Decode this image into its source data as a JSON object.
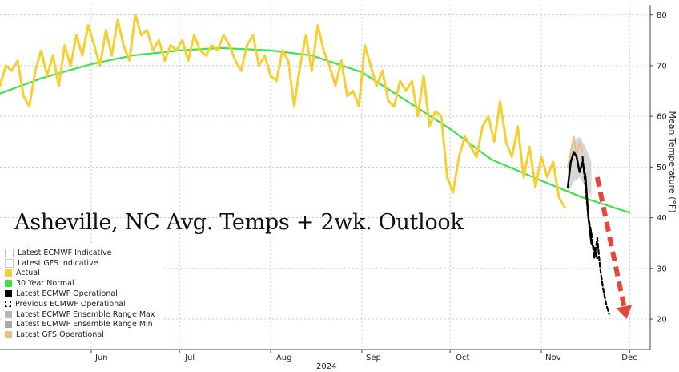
{
  "chart_data": {
    "type": "line",
    "title": "Asheville, NC Avg. Temps + 2wk. Outlook",
    "xlabel": "2024",
    "ylabel": "Mean Temperature (°F)",
    "xlim": [
      "2024-05-01",
      "2024-12-08"
    ],
    "ylim": [
      14,
      82
    ],
    "y_ticks": [
      20,
      30,
      40,
      50,
      60,
      70,
      80
    ],
    "x_ticks": [
      {
        "label": "Jun",
        "date": "2024-06-01"
      },
      {
        "label": "Jul",
        "date": "2024-07-01"
      },
      {
        "label": "Aug",
        "date": "2024-08-01"
      },
      {
        "label": "Sep",
        "date": "2024-09-01"
      },
      {
        "label": "Oct",
        "date": "2024-10-01"
      },
      {
        "label": "Nov",
        "date": "2024-11-01"
      },
      {
        "label": "Dec",
        "date": "2024-12-01"
      }
    ],
    "grid": true,
    "legend_position": "bottom-left",
    "series": [
      {
        "name": "30 Year Normal",
        "color": "#3ee34a",
        "style": "solid",
        "x": [
          "2024-05-01",
          "2024-05-15",
          "2024-06-01",
          "2024-06-15",
          "2024-07-01",
          "2024-07-15",
          "2024-08-01",
          "2024-08-15",
          "2024-09-01",
          "2024-09-15",
          "2024-10-01",
          "2024-10-15",
          "2024-11-01",
          "2024-11-15",
          "2024-12-01"
        ],
        "y": [
          64.5,
          67.5,
          70.3,
          72.0,
          73.0,
          73.5,
          73.0,
          72.0,
          68.7,
          63.5,
          57.5,
          51.5,
          47.3,
          44.0,
          41.0
        ]
      },
      {
        "name": "Actual",
        "color": "#f5d033",
        "style": "solid",
        "x": [
          "2024-05-01",
          "2024-05-03",
          "2024-05-05",
          "2024-05-07",
          "2024-05-09",
          "2024-05-11",
          "2024-05-13",
          "2024-05-15",
          "2024-05-17",
          "2024-05-19",
          "2024-05-21",
          "2024-05-23",
          "2024-05-25",
          "2024-05-27",
          "2024-05-29",
          "2024-05-31",
          "2024-06-02",
          "2024-06-04",
          "2024-06-06",
          "2024-06-08",
          "2024-06-10",
          "2024-06-12",
          "2024-06-14",
          "2024-06-16",
          "2024-06-18",
          "2024-06-20",
          "2024-06-22",
          "2024-06-24",
          "2024-06-26",
          "2024-06-28",
          "2024-06-30",
          "2024-07-02",
          "2024-07-04",
          "2024-07-06",
          "2024-07-08",
          "2024-07-10",
          "2024-07-12",
          "2024-07-14",
          "2024-07-16",
          "2024-07-18",
          "2024-07-20",
          "2024-07-22",
          "2024-07-24",
          "2024-07-26",
          "2024-07-28",
          "2024-07-30",
          "2024-08-01",
          "2024-08-03",
          "2024-08-05",
          "2024-08-07",
          "2024-08-09",
          "2024-08-11",
          "2024-08-13",
          "2024-08-15",
          "2024-08-17",
          "2024-08-19",
          "2024-08-21",
          "2024-08-23",
          "2024-08-25",
          "2024-08-27",
          "2024-08-29",
          "2024-08-31",
          "2024-09-02",
          "2024-09-04",
          "2024-09-06",
          "2024-09-08",
          "2024-09-10",
          "2024-09-12",
          "2024-09-14",
          "2024-09-16",
          "2024-09-18",
          "2024-09-20",
          "2024-09-22",
          "2024-09-24",
          "2024-09-26",
          "2024-09-28",
          "2024-09-30",
          "2024-10-02",
          "2024-10-04",
          "2024-10-06",
          "2024-10-08",
          "2024-10-10",
          "2024-10-12",
          "2024-10-14",
          "2024-10-16",
          "2024-10-18",
          "2024-10-20",
          "2024-10-22",
          "2024-10-24",
          "2024-10-26",
          "2024-10-28",
          "2024-10-30",
          "2024-11-01",
          "2024-11-03",
          "2024-11-05",
          "2024-11-07",
          "2024-11-09"
        ],
        "y": [
          66,
          70,
          69,
          71,
          64,
          62,
          69,
          73,
          68,
          72,
          66,
          74,
          70,
          76,
          72,
          78,
          74,
          70,
          77,
          72,
          79,
          74,
          71,
          80,
          76,
          77,
          73,
          75,
          71,
          74,
          73,
          75,
          71,
          76,
          73,
          72,
          74,
          73,
          76,
          74,
          71,
          69,
          74,
          76,
          70,
          72,
          68,
          67,
          73,
          71,
          62,
          70,
          76,
          69,
          78,
          73,
          70,
          66,
          71,
          64,
          65,
          62,
          74,
          70,
          66,
          69,
          63,
          62,
          67,
          65,
          67,
          60,
          68,
          58,
          61,
          60,
          48,
          45,
          52,
          56,
          54,
          52,
          58,
          60,
          55,
          63,
          55,
          52,
          58,
          48,
          54,
          46,
          52,
          48,
          51,
          44,
          42
        ]
      },
      {
        "name": "Latest ECMWF Operational",
        "color": "#000000",
        "style": "solid",
        "x": [
          "2024-11-10",
          "2024-11-11",
          "2024-11-12",
          "2024-11-13",
          "2024-11-14",
          "2024-11-15",
          "2024-11-16",
          "2024-11-17",
          "2024-11-18",
          "2024-11-19",
          "2024-11-20"
        ],
        "y": [
          46,
          51,
          53,
          52,
          49,
          51,
          48,
          40,
          35,
          34,
          32
        ]
      },
      {
        "name": "Previous ECMWF Operational",
        "color": "#000000",
        "style": "dashed",
        "x": [
          "2024-11-15",
          "2024-11-16",
          "2024-11-17",
          "2024-11-18",
          "2024-11-19",
          "2024-11-20",
          "2024-11-21",
          "2024-11-22",
          "2024-11-23",
          "2024-11-24"
        ],
        "y": [
          52,
          46,
          40,
          37,
          32,
          36,
          30,
          26,
          23,
          21
        ]
      },
      {
        "name": "Latest ECMWF Ensemble Range Max",
        "color": "#b8b8b8",
        "style": "band",
        "x": [
          "2024-11-10",
          "2024-11-12",
          "2024-11-14",
          "2024-11-16",
          "2024-11-18"
        ],
        "y": [
          50,
          55,
          56,
          54,
          51
        ]
      },
      {
        "name": "Latest ECMWF Ensemble Range Min",
        "color": "#a9a9a9",
        "style": "band",
        "x": [
          "2024-11-10",
          "2024-11-12",
          "2024-11-14",
          "2024-11-16",
          "2024-11-18"
        ],
        "y": [
          45,
          47,
          48,
          46,
          44
        ]
      },
      {
        "name": "Latest GFS Operational",
        "color": "#e8c08a",
        "style": "solid",
        "x": [
          "2024-11-10",
          "2024-11-11",
          "2024-11-12",
          "2024-11-13",
          "2024-11-14",
          "2024-11-15"
        ],
        "y": [
          50,
          53,
          56,
          52,
          55,
          53
        ]
      }
    ],
    "annotation_arrow": {
      "color": "#e8453c",
      "from": {
        "x": "2024-11-20",
        "y": 48
      },
      "to": {
        "x": "2024-11-30",
        "y": 20
      }
    }
  },
  "legend": {
    "items": [
      {
        "label": "Latest ECMWF Indicative",
        "color": "#ffffff",
        "border": "#bbbbbb"
      },
      {
        "label": "Latest GFS Indicative",
        "color": "#ffffff",
        "border": "#cccccc"
      },
      {
        "label": "Actual",
        "color": "#f5d033"
      },
      {
        "label": "30 Year Normal",
        "color": "#3ee34a"
      },
      {
        "label": "Latest ECMWF Operational",
        "color": "#000000"
      },
      {
        "label": "Previous ECMWF Operational",
        "color": "#000000",
        "dashed": true
      },
      {
        "label": "Latest ECMWF Ensemble Range Max",
        "color": "#b8b8b8"
      },
      {
        "label": "Latest ECMWF Ensemble Range Min",
        "color": "#a9a9a9"
      },
      {
        "label": "Latest GFS Operational",
        "color": "#e8c08a"
      }
    ]
  }
}
